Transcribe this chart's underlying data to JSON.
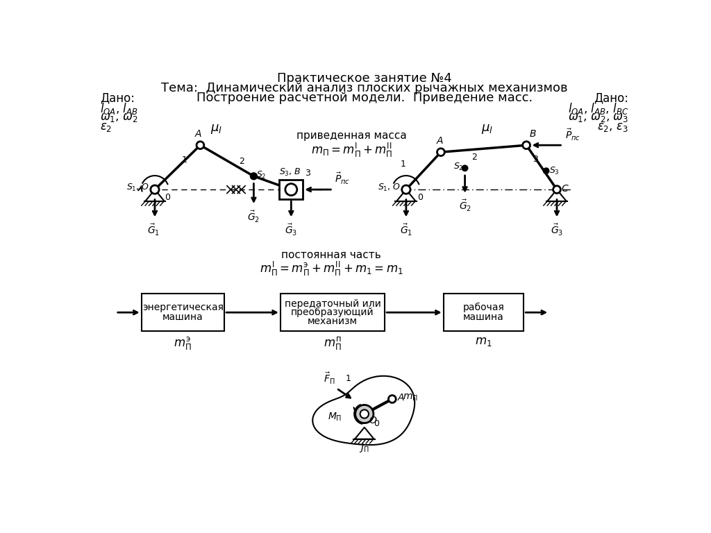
{
  "title_line1": "Практическое занятие №4",
  "title_line2": "Тема:  Динамический анализ плоских рычажных механизмов",
  "title_line3": "Построение расчетной модели.  Приведение масс.",
  "bg_color": "#ffffff",
  "fg_color": "#000000"
}
